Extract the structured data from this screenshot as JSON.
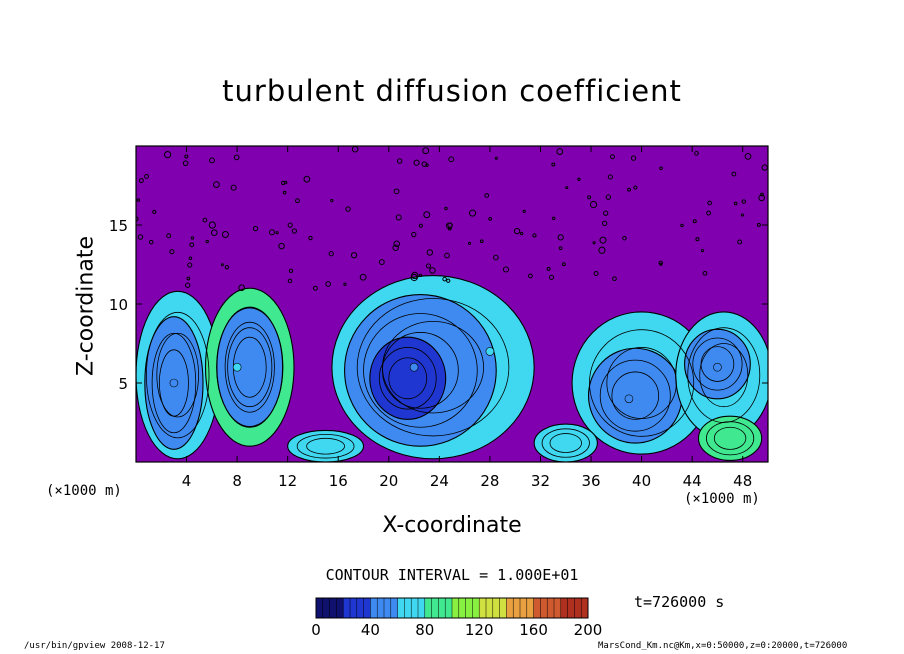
{
  "chart_data": {
    "type": "heatmap",
    "title": "turbulent diffusion coefficient",
    "xlabel": "X-coordinate",
    "ylabel": "Z-coordinate",
    "x_unit": "(×1000 m)",
    "xlim": [
      0,
      50
    ],
    "ylim": [
      0,
      20
    ],
    "xticks": [
      4,
      8,
      12,
      16,
      20,
      24,
      28,
      32,
      36,
      40,
      44,
      48
    ],
    "yticks": [
      5,
      10,
      15
    ],
    "contour_interval_label": "CONTOUR INTERVAL = 1.000E+01",
    "colorbar": {
      "range": [
        0,
        200
      ],
      "ticks": [
        0,
        40,
        80,
        120,
        160,
        200
      ],
      "colors": [
        "#10106e",
        "#2036d0",
        "#3f8af0",
        "#40d8f0",
        "#40e890",
        "#88f040",
        "#d0e040",
        "#e8a040",
        "#d05a30",
        "#b03020"
      ]
    },
    "background_color": "#8000b0",
    "cells": [
      {
        "x": 3,
        "z": 5,
        "value": 55
      },
      {
        "x": 8,
        "z": 6,
        "value": 70
      },
      {
        "x": 22,
        "z": 6,
        "value": 40
      },
      {
        "x": 28,
        "z": 7,
        "value": 60
      },
      {
        "x": 39,
        "z": 4,
        "value": 45
      },
      {
        "x": 46,
        "z": 6,
        "value": 55
      }
    ],
    "time": "t=726000 s"
  },
  "footer": {
    "left": "/usr/bin/gpview   2008-12-17",
    "right": "MarsCond_Km.nc@Km,x=0:50000,z=0:20000,t=726000"
  }
}
